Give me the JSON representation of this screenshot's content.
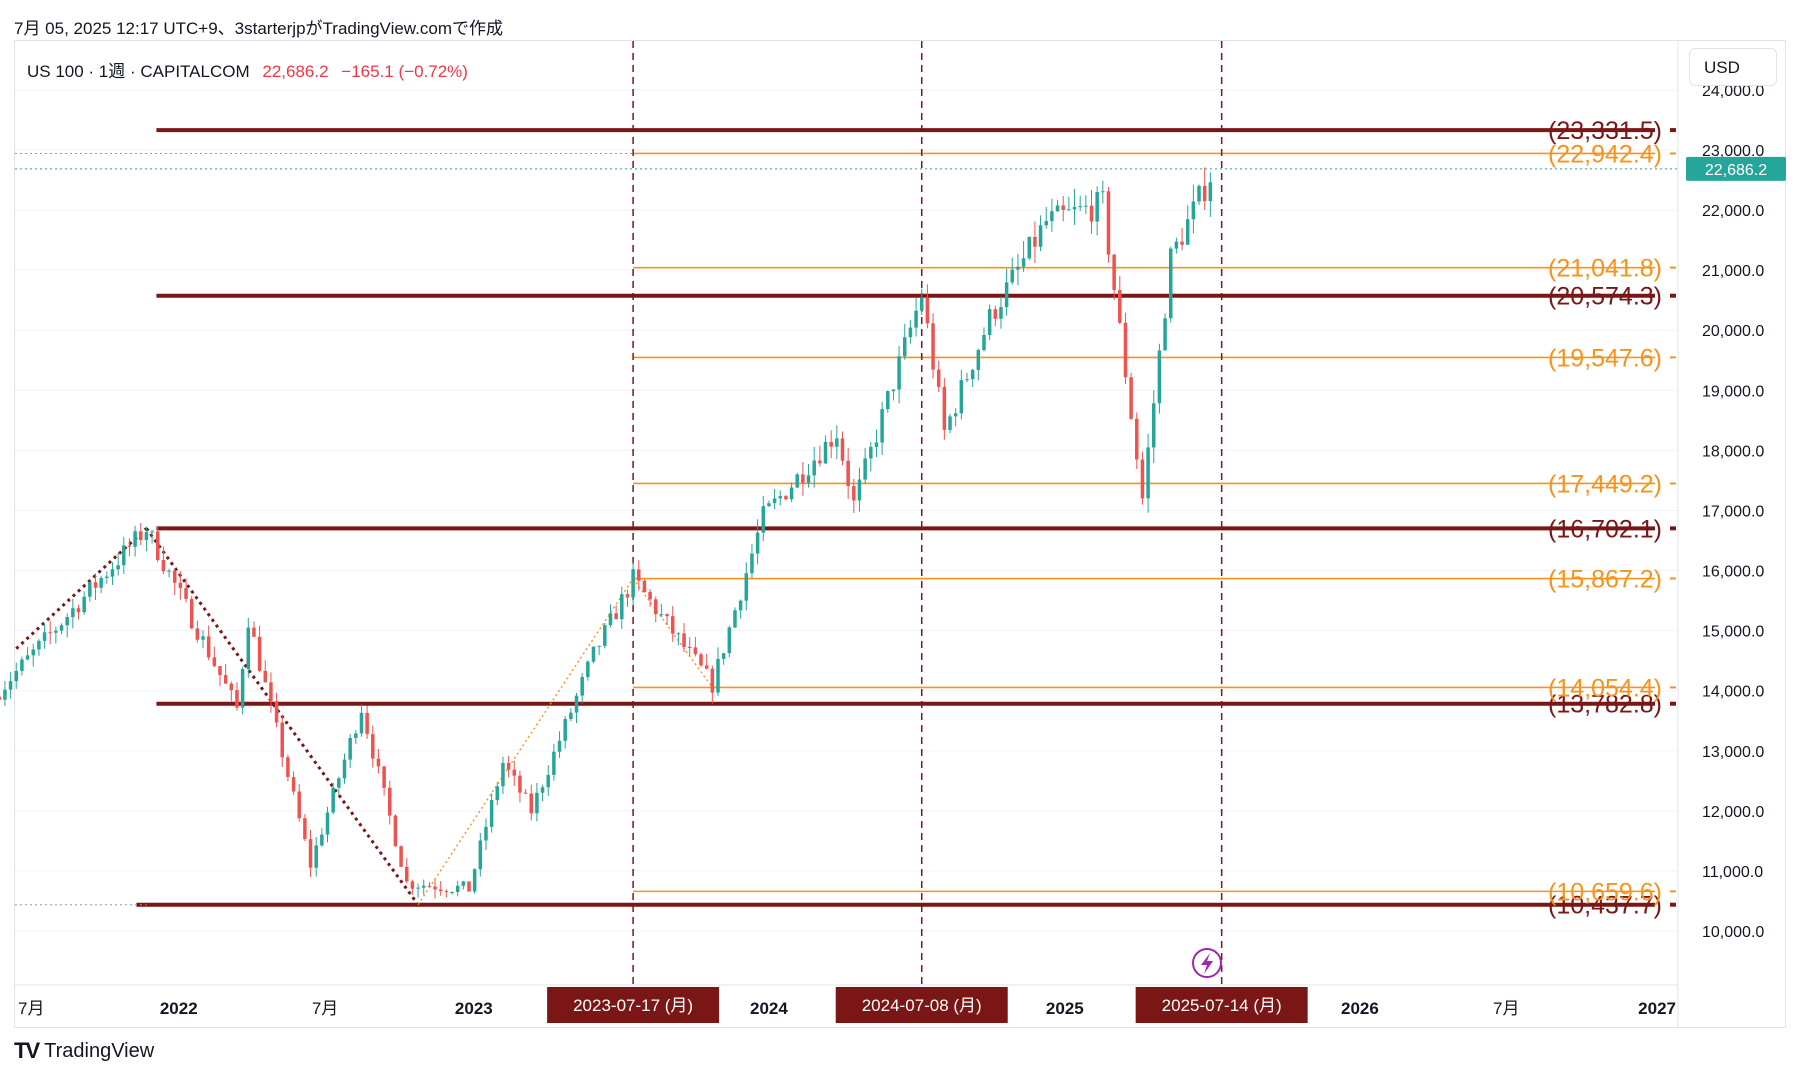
{
  "header": {
    "snapshot_text": "7月 05, 2025 12:17 UTC+9、3starterjpがTradingView.comで作成"
  },
  "legend": {
    "symbol": "US 100 · 1週 · CAPITALCOM",
    "price": "22,686.2",
    "change": "−165.1 (−0.72%)"
  },
  "currency_button": "USD",
  "brand": {
    "logo_icon": "tradingview-logo-icon",
    "name": "TradingView"
  },
  "colors": {
    "up": "#26a69a",
    "down": "#ef5350",
    "support": "#7b1616",
    "fib": "#f7931a",
    "marker": "#7b1616",
    "last_price_bg": "#26a69a",
    "alert": "#9c27b0"
  },
  "chart_data": {
    "type": "candlestick",
    "title": "US 100 · 1週 · CAPITALCOM",
    "ylim": [
      9200,
      24500
    ],
    "y_ticks": [
      "10,000.0",
      "11,000.0",
      "12,000.0",
      "13,000.0",
      "14,000.0",
      "15,000.0",
      "16,000.0",
      "17,000.0",
      "18,000.0",
      "19,000.0",
      "20,000.0",
      "21,000.0",
      "22,000.0",
      "23,000.0",
      "24,000.0"
    ],
    "x_ticks": [
      {
        "label": "7月",
        "date": "2021-07-01"
      },
      {
        "label": "2022",
        "date": "2022-01-01",
        "bold": true
      },
      {
        "label": "7月",
        "date": "2022-07-01"
      },
      {
        "label": "2023",
        "date": "2023-01-01",
        "bold": true
      },
      {
        "label": "2024",
        "date": "2024-01-01",
        "bold": true
      },
      {
        "label": "2025",
        "date": "2025-01-01",
        "bold": true
      },
      {
        "label": "2026",
        "date": "2026-01-01",
        "bold": true
      },
      {
        "label": "7月",
        "date": "2026-07-01"
      },
      {
        "label": "2027",
        "date": "2027-01-01",
        "bold": true
      }
    ],
    "support_lines": [
      {
        "value": 23331.5,
        "label": "(23,331.5)"
      },
      {
        "value": 20574.3,
        "label": "(20,574.3)"
      },
      {
        "value": 16702.1,
        "label": "(16,702.1)"
      },
      {
        "value": 13782.8,
        "label": "(13,782.8)"
      },
      {
        "value": 10437.7,
        "label": "(10,437.7)"
      }
    ],
    "fib_lines": [
      {
        "value": 22942.4,
        "label": "(22,942.4)"
      },
      {
        "value": 21041.8,
        "label": "(21,041.8)"
      },
      {
        "value": 19547.6,
        "label": "(19,547.6)"
      },
      {
        "value": 17449.2,
        "label": "(17,449.2)"
      },
      {
        "value": 15867.2,
        "label": "(15,867.2)"
      },
      {
        "value": 14054.4,
        "label": "(14,054.4)"
      },
      {
        "value": 10659.6,
        "label": "(10,659.6)"
      }
    ],
    "date_markers": [
      {
        "date": "2023-07-17",
        "label": "2023-07-17 (月)"
      },
      {
        "date": "2024-07-08",
        "label": "2024-07-08 (月)"
      },
      {
        "date": "2025-07-14",
        "label": "2025-07-14 (月)"
      }
    ],
    "last_price": {
      "value": 22686.2,
      "label": "22,686.2"
    },
    "anchors": [
      {
        "date": "2021-05-17",
        "value": 13900
      },
      {
        "date": "2021-11-22",
        "value": 16702
      },
      {
        "date": "2022-03-14",
        "value": 13700
      },
      {
        "date": "2022-03-28",
        "value": 15200
      },
      {
        "date": "2022-06-13",
        "value": 11100
      },
      {
        "date": "2022-08-15",
        "value": 13720
      },
      {
        "date": "2022-10-10",
        "value": 10800
      },
      {
        "date": "2022-12-26",
        "value": 10700
      },
      {
        "date": "2023-02-06",
        "value": 12800
      },
      {
        "date": "2023-03-13",
        "value": 12000
      },
      {
        "date": "2023-05-29",
        "value": 14600
      },
      {
        "date": "2023-07-17",
        "value": 15860
      },
      {
        "date": "2023-10-23",
        "value": 14100
      },
      {
        "date": "2023-12-25",
        "value": 16900
      },
      {
        "date": "2024-03-25",
        "value": 18300
      },
      {
        "date": "2024-04-15",
        "value": 17100
      },
      {
        "date": "2024-07-08",
        "value": 20600
      },
      {
        "date": "2024-08-05",
        "value": 18300
      },
      {
        "date": "2024-09-30",
        "value": 20200
      },
      {
        "date": "2024-12-09",
        "value": 21800
      },
      {
        "date": "2025-02-17",
        "value": 22100
      },
      {
        "date": "2025-04-07",
        "value": 17200
      },
      {
        "date": "2025-05-12",
        "value": 21200
      },
      {
        "date": "2025-07-04",
        "value": 22686
      }
    ]
  }
}
